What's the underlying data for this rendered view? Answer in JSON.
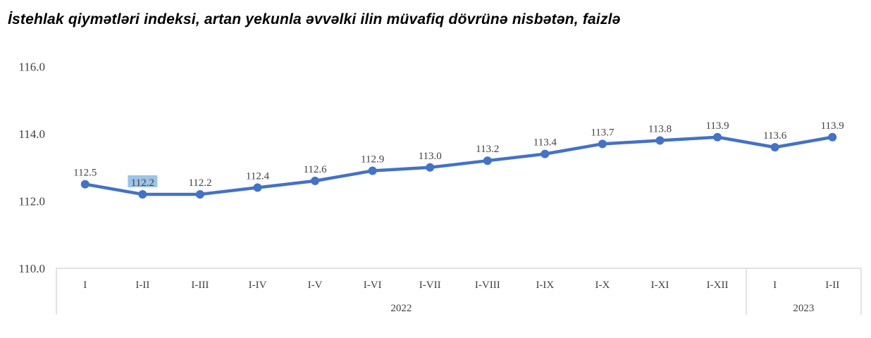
{
  "chart_data": {
    "type": "line",
    "title": "İstehlak qiymətləri indeksi, artan yekunla əvvəlki ilin müvafiq dövrünə nisbətən, faizlə",
    "categories": [
      "I",
      "I-II",
      "I-III",
      "I-IV",
      "I-V",
      "I-VI",
      "I-VII",
      "I-VIII",
      "I-IX",
      "I-X",
      "I-XI",
      "I-XII",
      "I",
      "I-II"
    ],
    "groups": [
      {
        "label": "2022",
        "count": 12
      },
      {
        "label": "2023",
        "count": 2
      }
    ],
    "values": [
      112.5,
      112.2,
      112.2,
      112.4,
      112.6,
      112.9,
      113.0,
      113.2,
      113.4,
      113.7,
      113.8,
      113.9,
      113.6,
      113.9
    ],
    "data_labels": [
      "112.5",
      "112.2",
      "112.2",
      "112.4",
      "112.6",
      "112.9",
      "113.0",
      "113.2",
      "113.4",
      "113.7",
      "113.8",
      "113.9",
      "113.6",
      "113.9"
    ],
    "highlighted_label_index": 1,
    "yticks": [
      "110.0",
      "112.0",
      "114.0",
      "116.0"
    ],
    "ylim": [
      110,
      116
    ],
    "grid": false,
    "colors": {
      "line": "#4472C4",
      "highlight": "#9DC3E6",
      "axis": "#D9D9D9"
    }
  }
}
